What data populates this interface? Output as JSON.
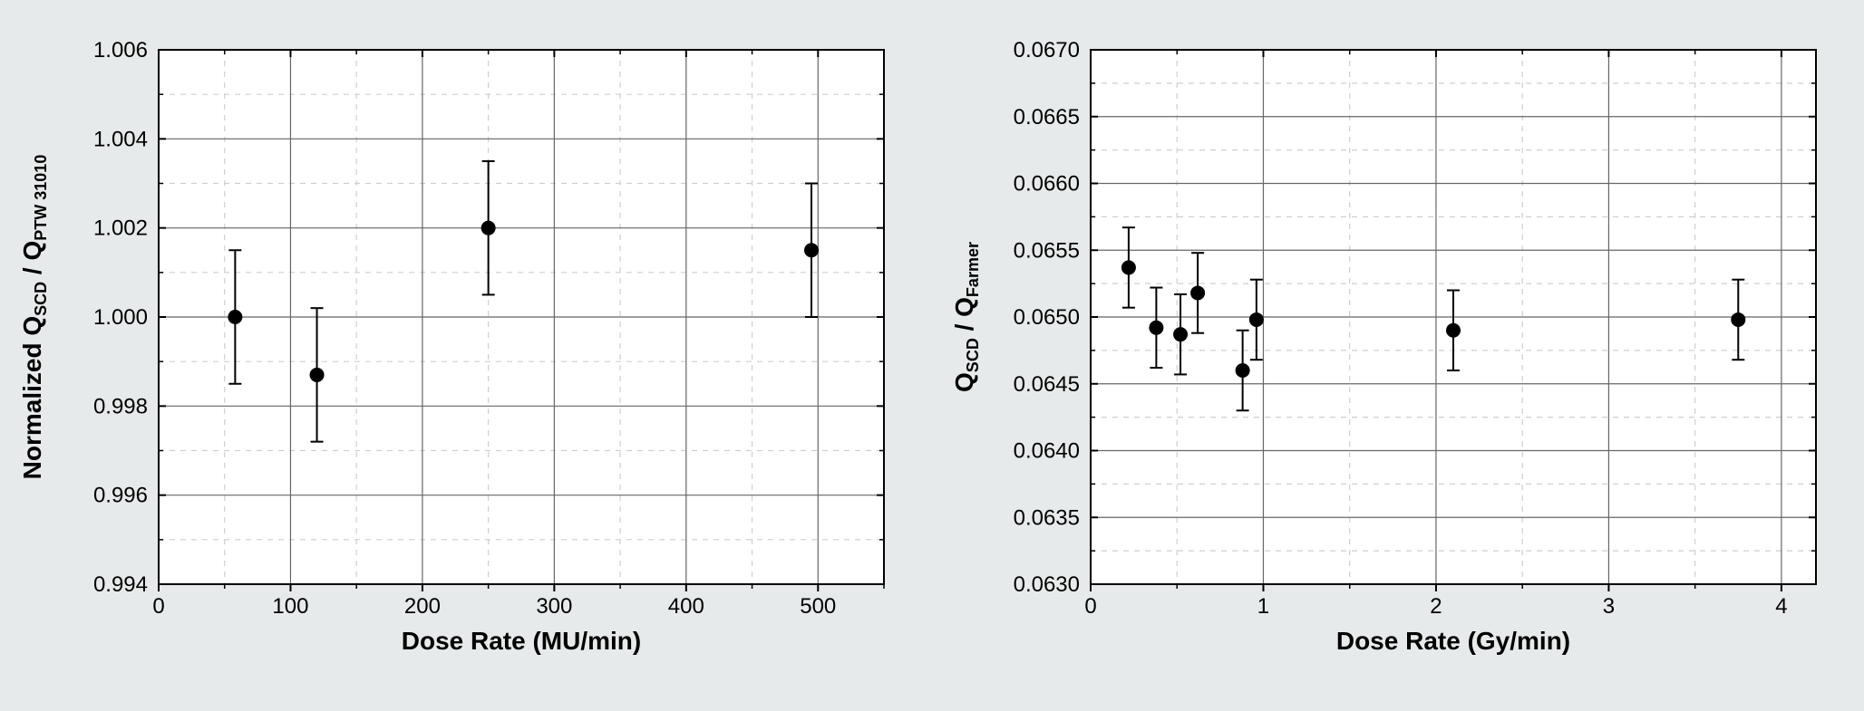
{
  "background_color": "#e7eaea",
  "panel_background": "#ffffff",
  "marker_color": "#000000",
  "grid_major_color": "#666666",
  "grid_minor_color": "#cfcfcf",
  "left_chart": {
    "type": "scatter",
    "xlabel": "Dose Rate (MU/min)",
    "ylabel": "Normalized Q",
    "ylabel_sub1": "SCD",
    "ylabel_mid": " / Q",
    "ylabel_sub2": "PTW 31010",
    "xlim": [
      0,
      550
    ],
    "ylim": [
      0.994,
      1.006
    ],
    "x_major_ticks": [
      0,
      100,
      200,
      300,
      400,
      500
    ],
    "x_minor_ticks": [
      50,
      150,
      250,
      350,
      450,
      550
    ],
    "y_major_ticks": [
      0.994,
      0.996,
      0.998,
      1.0,
      1.002,
      1.004,
      1.006
    ],
    "y_minor_ticks": [
      0.995,
      0.997,
      0.999,
      1.001,
      1.003,
      1.005
    ],
    "y_tick_labels": [
      "0.994",
      "0.996",
      "0.998",
      "1.000",
      "1.002",
      "1.004",
      "1.006"
    ],
    "x_tick_labels": [
      "0",
      "100",
      "200",
      "300",
      "400",
      "500"
    ],
    "points": [
      {
        "x": 58,
        "y": 1.0,
        "err": 0.0015
      },
      {
        "x": 120,
        "y": 0.9987,
        "err": 0.0015
      },
      {
        "x": 250,
        "y": 1.002,
        "err": 0.0015
      },
      {
        "x": 495,
        "y": 1.0015,
        "err": 0.0015
      }
    ],
    "marker_radius": 8,
    "axis_label_fontsize": 28,
    "tick_label_fontsize": 24
  },
  "right_chart": {
    "type": "scatter",
    "xlabel": "Dose Rate (Gy/min)",
    "ylabel": "Q",
    "ylabel_sub1": "SCD",
    "ylabel_mid": " / Q",
    "ylabel_sub2": "Farmer",
    "xlim": [
      0,
      4.2
    ],
    "ylim": [
      0.063,
      0.067
    ],
    "x_major_ticks": [
      0,
      1,
      2,
      3,
      4
    ],
    "x_minor_ticks": [
      0.5,
      1.5,
      2.5,
      3.5
    ],
    "y_major_ticks": [
      0.063,
      0.0635,
      0.064,
      0.0645,
      0.065,
      0.0655,
      0.066,
      0.0665,
      0.067
    ],
    "y_minor_ticks": [
      0.06325,
      0.06375,
      0.06425,
      0.06475,
      0.06525,
      0.06575,
      0.06625,
      0.06675
    ],
    "y_tick_labels": [
      "0.0630",
      "0.0635",
      "0.0640",
      "0.0645",
      "0.0650",
      "0.0655",
      "0.0660",
      "0.0665",
      "0.0670"
    ],
    "x_tick_labels": [
      "0",
      "1",
      "2",
      "3",
      "4"
    ],
    "points": [
      {
        "x": 0.22,
        "y": 0.06537,
        "err": 0.0003
      },
      {
        "x": 0.38,
        "y": 0.06492,
        "err": 0.0003
      },
      {
        "x": 0.52,
        "y": 0.06487,
        "err": 0.0003
      },
      {
        "x": 0.62,
        "y": 0.06518,
        "err": 0.0003
      },
      {
        "x": 0.88,
        "y": 0.0646,
        "err": 0.0003
      },
      {
        "x": 0.96,
        "y": 0.06498,
        "err": 0.0003
      },
      {
        "x": 2.1,
        "y": 0.0649,
        "err": 0.0003
      },
      {
        "x": 3.75,
        "y": 0.06498,
        "err": 0.0003
      }
    ],
    "marker_radius": 8,
    "axis_label_fontsize": 28,
    "tick_label_fontsize": 24
  }
}
